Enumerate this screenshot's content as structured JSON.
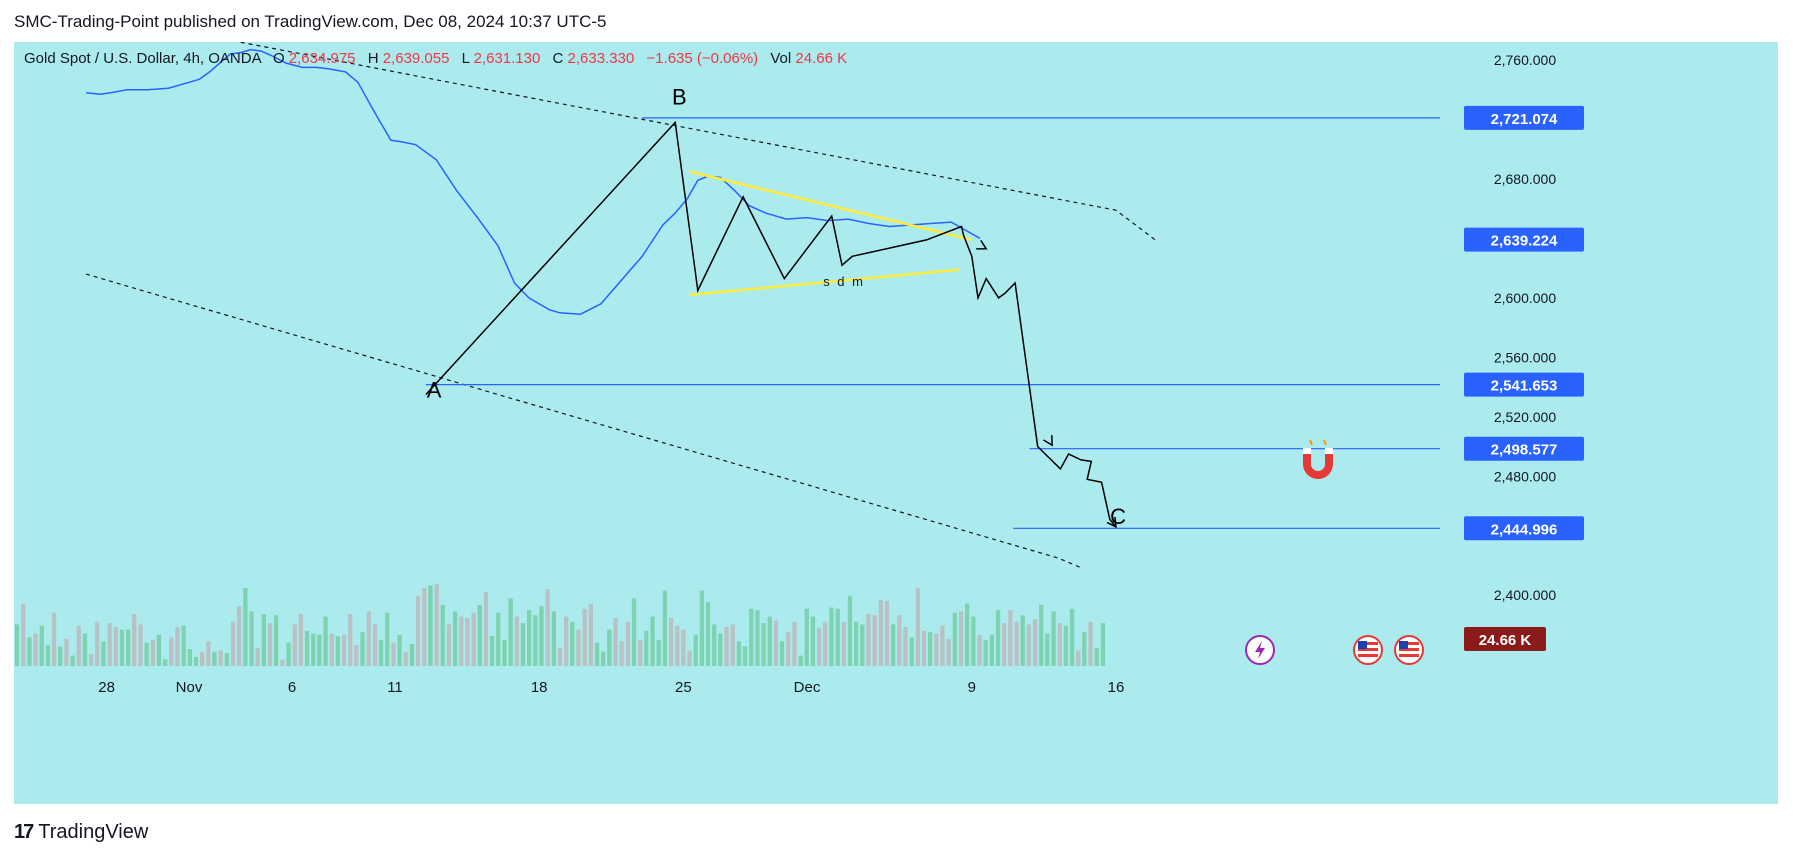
{
  "header": {
    "published": "SMC-Trading-Point published on TradingView.com, Dec 08, 2024 10:37 UTC-5"
  },
  "legend": {
    "symbol": "Gold Spot / U.S. Dollar, 4h, OANDA",
    "o_label": "O",
    "o_value": "2,634.975",
    "h_label": "H",
    "h_value": "2,639.055",
    "l_label": "L",
    "l_value": "2,631.130",
    "c_label": "C",
    "c_value": "2,633.330",
    "change": "−1.635 (−0.06%)",
    "vol_label": "Vol",
    "vol_value": "24.66 K"
  },
  "footer": {
    "brand": "TradingView"
  },
  "colors": {
    "background": "#abebee",
    "ma_line": "#2962ff",
    "price_path": "#000000",
    "triangle": "#ffeb3b",
    "level_line": "#2962ff",
    "label_bg": "#2962ff",
    "volume_up": "#7dd3b0",
    "volume_down": "#b8c2c4",
    "vol_badge": "#8b1a1a",
    "legend_value": "#f23645"
  },
  "chart_data": {
    "type": "line",
    "symbol": "Gold Spot / U.S. Dollar",
    "timeframe": "4h",
    "y_ticks": [
      "2,760.000",
      "2,680.000",
      "2,600.000",
      "2,560.000",
      "2,520.000",
      "2,480.000",
      "2,400.000"
    ],
    "y_tick_values": [
      2760,
      2680,
      2600,
      2560,
      2520,
      2480,
      2400
    ],
    "x_ticks": [
      "28",
      "Nov",
      "6",
      "11",
      "18",
      "25",
      "Dec",
      "9",
      "16"
    ],
    "x_tick_days": [
      -4,
      0,
      5,
      10,
      17,
      24,
      30,
      38,
      45
    ],
    "levels": [
      {
        "value": 2721.074,
        "label": "2,721.074",
        "x_start": 22
      },
      {
        "value": 2639.224,
        "label": "2,639.224"
      },
      {
        "value": 2541.653,
        "label": "2,541.653",
        "x_start": 11.5
      },
      {
        "value": 2498.577,
        "label": "2,498.577",
        "x_start": 40.8
      },
      {
        "value": 2444.996,
        "label": "2,444.996",
        "x_start": 40
      }
    ],
    "volume_badge": "24.66 K",
    "wave_labels": [
      {
        "text": "A",
        "x": 11.9,
        "y": 2533
      },
      {
        "text": "B",
        "x": 23.8,
        "y": 2730
      },
      {
        "text": "C",
        "x": 45.1,
        "y": 2448
      }
    ],
    "pattern_label": {
      "text": "s d m",
      "x": 31.8,
      "y": 2608
    },
    "moving_average": {
      "x": [
        -5,
        -4.3,
        -3.8,
        -3,
        -2,
        -1,
        0,
        0.5,
        1,
        1.5,
        2,
        2.5,
        3,
        3.5,
        4,
        4.7,
        5.5,
        6.2,
        6.8,
        7.6,
        8.2,
        9,
        9.8,
        10.3,
        11,
        12,
        13,
        14,
        15,
        15.8,
        16.5,
        17.5,
        18,
        19,
        20,
        21,
        22,
        23,
        23.6,
        24.2,
        24.7,
        25.2,
        25.8,
        26.5,
        27.2,
        28,
        29,
        30,
        31,
        32,
        33,
        34,
        35,
        36,
        37,
        38.4
      ],
      "y": [
        2738,
        2737,
        2738,
        2740,
        2740,
        2741,
        2745,
        2747,
        2752,
        2758,
        2764,
        2765,
        2767,
        2766,
        2763,
        2758,
        2755,
        2755,
        2754,
        2752,
        2745,
        2725,
        2706,
        2705,
        2703,
        2693,
        2672,
        2654,
        2635,
        2610,
        2600,
        2592,
        2590,
        2589,
        2596,
        2612,
        2628,
        2649,
        2657,
        2667,
        2679,
        2682,
        2681,
        2672,
        2662,
        2657,
        2653,
        2654,
        2652,
        2653,
        2650,
        2648,
        2649,
        2650,
        2651,
        2640
      ]
    },
    "wave_path": {
      "x": [
        11.5,
        23.6,
        24.7,
        26.9,
        28.9,
        31.2,
        31.7,
        32.2,
        35.8,
        37.5,
        37.6,
        38.0,
        38.3,
        38.7,
        39.3,
        39.6,
        40.1,
        41.2,
        42.3,
        42.7,
        43.3,
        43.8,
        43.6,
        44.3,
        44.7,
        45.0
      ],
      "y": [
        2535,
        2718,
        2605,
        2668,
        2613,
        2655,
        2622,
        2628,
        2639,
        2648,
        2642,
        2628,
        2600,
        2613,
        2600,
        2603,
        2610,
        2500,
        2485,
        2495,
        2491,
        2490,
        2478,
        2476,
        2451,
        2446
      ]
    },
    "wave_arrows": [
      {
        "x": [
          38.3,
          38.7
        ],
        "y": [
          2636,
          2633
        ]
      },
      {
        "x": [
          41.6,
          41.9
        ],
        "y": [
          2508,
          2501
        ]
      },
      {
        "x": [
          44.7,
          45.0
        ],
        "y": [
          2452,
          2446
        ]
      }
    ],
    "triangle_upper": {
      "x": [
        24.3,
        38.0
      ],
      "y": [
        2685,
        2639
      ]
    },
    "triangle_lower": {
      "x": [
        24.3,
        37.4
      ],
      "y": [
        2602,
        2619
      ]
    },
    "channel_upper": {
      "x": [
        0.6,
        45.0,
        47.0
      ],
      "y": [
        2777,
        2659,
        2638
      ]
    },
    "channel_lower": {
      "x": [
        -5.0,
        15.0,
        42.2,
        43.4
      ],
      "y": [
        2616,
        2535,
        2425,
        2418
      ]
    },
    "volume_scale_max": 100,
    "volume": [
      32,
      48,
      22,
      25,
      31,
      16,
      41,
      15,
      21,
      8,
      31,
      25,
      9,
      34,
      19,
      33,
      30,
      28,
      28,
      40,
      32,
      18,
      20,
      24,
      5,
      22,
      30,
      31,
      13,
      7,
      11,
      19,
      11,
      12,
      10,
      34,
      46,
      60,
      42,
      14,
      40,
      33,
      39,
      5,
      18,
      32,
      40,
      27,
      25,
      24,
      38,
      25,
      23,
      24,
      40,
      16,
      26,
      42,
      32,
      20,
      41,
      18,
      24,
      11,
      17,
      54,
      60,
      62,
      63,
      47,
      32,
      42,
      38,
      37,
      41,
      47,
      57,
      23,
      41,
      20,
      52,
      38,
      33,
      43,
      39,
      46,
      59,
      42,
      14,
      38,
      34,
      28,
      44,
      48,
      18,
      11,
      28,
      37,
      19,
      34,
      52,
      20,
      27,
      38,
      20,
      58,
      37,
      31,
      28,
      12,
      24,
      58,
      49,
      32,
      25,
      30,
      32,
      19,
      15,
      44,
      43,
      33,
      38,
      35,
      19,
      26,
      34,
      8,
      44,
      38,
      29,
      34,
      45,
      44,
      34,
      54,
      34,
      32,
      40,
      39,
      51,
      50,
      32,
      39,
      30,
      22,
      60,
      27,
      26,
      25,
      31,
      21,
      41,
      42,
      48,
      38,
      24,
      20,
      24,
      43,
      33,
      43,
      34,
      39,
      32,
      36,
      47,
      25,
      42,
      33,
      31,
      44,
      12,
      26,
      34,
      14,
      33
    ],
    "volume_up_flags": [
      1,
      0,
      1,
      0,
      1,
      1,
      0,
      1,
      0,
      1,
      0,
      1,
      0,
      0,
      1,
      0,
      0,
      1,
      1,
      0,
      0,
      1,
      0,
      1,
      1,
      0,
      0,
      1,
      1,
      1,
      0,
      0,
      1,
      0,
      1,
      0,
      0,
      1,
      1,
      0,
      1,
      0,
      1,
      0,
      1,
      0,
      0,
      1,
      1,
      1,
      1,
      0,
      1,
      0,
      0,
      0,
      1,
      0,
      0,
      1,
      1,
      0,
      1,
      0,
      1,
      0,
      0,
      1,
      0,
      1,
      0,
      1,
      0,
      0,
      0,
      1,
      0,
      1,
      1,
      1,
      1,
      0,
      1,
      1,
      1,
      1,
      0,
      1,
      0,
      0,
      1,
      0,
      0,
      0,
      1,
      1,
      1,
      0,
      0,
      0,
      1,
      0,
      1,
      1,
      1,
      1,
      0,
      0,
      0,
      0,
      1,
      1,
      1,
      1,
      1,
      0,
      0,
      1,
      1,
      1,
      1,
      1,
      1,
      0,
      1,
      0,
      0,
      1,
      1,
      1,
      0,
      0,
      1,
      1,
      0,
      1,
      1,
      1,
      0,
      0,
      0,
      0,
      1,
      0,
      0,
      1,
      0,
      0,
      1,
      0,
      0,
      0,
      1,
      0,
      1,
      1,
      0,
      1,
      1,
      1,
      0,
      0,
      0,
      1,
      0,
      0,
      1,
      1,
      1,
      0,
      1,
      1,
      0,
      1,
      0,
      1,
      1
    ]
  }
}
